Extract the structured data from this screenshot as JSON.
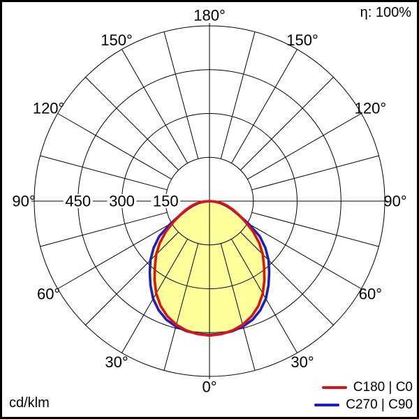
{
  "chart_data": {
    "type": "polar",
    "description": "Luminaire polar luminous intensity distribution diagram",
    "unit": "cd/klm",
    "efficiency_label": "η: 100%",
    "radial_ticks": [
      150,
      300,
      450
    ],
    "radial_max": 600,
    "angle_tick_values": [
      0,
      30,
      60,
      90,
      120,
      150,
      180
    ],
    "angle_tick_labels": [
      "0°",
      "30°",
      "60°",
      "90°",
      "120°",
      "150°",
      "180°"
    ],
    "grid_step_deg": 15,
    "grid_color": "#000000",
    "fill_color": "#ffff9b",
    "series": [
      {
        "name": "C180 | C0",
        "color": "#dc1414",
        "gamma": [
          0,
          5,
          10,
          15,
          20,
          25,
          30,
          35,
          40,
          45,
          50,
          55,
          60,
          65,
          70,
          75,
          80,
          85,
          90
        ],
        "values": [
          460,
          457,
          450,
          438,
          420,
          396,
          365,
          328,
          290,
          258,
          222,
          182,
          142,
          110,
          86,
          64,
          45,
          24,
          0
        ]
      },
      {
        "name": "C270 | C90",
        "color": "#1e1ec8",
        "gamma": [
          0,
          5,
          10,
          15,
          20,
          25,
          30,
          35,
          40,
          45,
          50,
          55,
          60,
          65,
          70,
          75,
          80,
          85,
          90
        ],
        "values": [
          458,
          456,
          452,
          444,
          432,
          412,
          386,
          352,
          318,
          286,
          250,
          210,
          154,
          108,
          80,
          58,
          38,
          18,
          0
        ]
      }
    ]
  }
}
